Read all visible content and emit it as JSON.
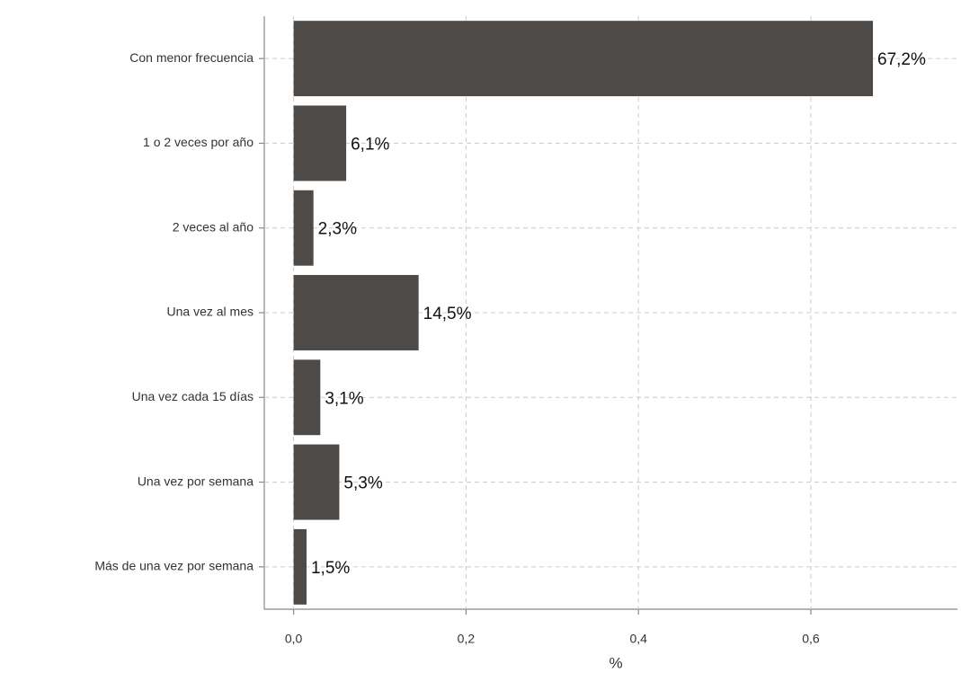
{
  "chart_data": {
    "type": "bar",
    "orientation": "horizontal",
    "x_label": "%",
    "categories": [
      "Con menor frecuencia",
      "1 o 2 veces por año",
      "2 veces al año",
      "Una vez al mes",
      "Una vez cada 15 días",
      "Una vez por semana",
      "Más de una vez por semana"
    ],
    "values": [
      0.672,
      0.061,
      0.023,
      0.145,
      0.031,
      0.053,
      0.015
    ],
    "value_labels": [
      "67,2%",
      "6,1%",
      "2,3%",
      "14,5%",
      "3,1%",
      "5,3%",
      "1,5%"
    ],
    "color": "#4d4a48",
    "xlim": [
      -0.034,
      0.77
    ],
    "xticks": [
      {
        "value": 0,
        "label": "0,0"
      },
      {
        "value": 0.2,
        "label": "0,2"
      },
      {
        "value": 0.4,
        "label": "0,4"
      },
      {
        "value": 0.6,
        "label": "0,6"
      }
    ],
    "grid": true
  }
}
